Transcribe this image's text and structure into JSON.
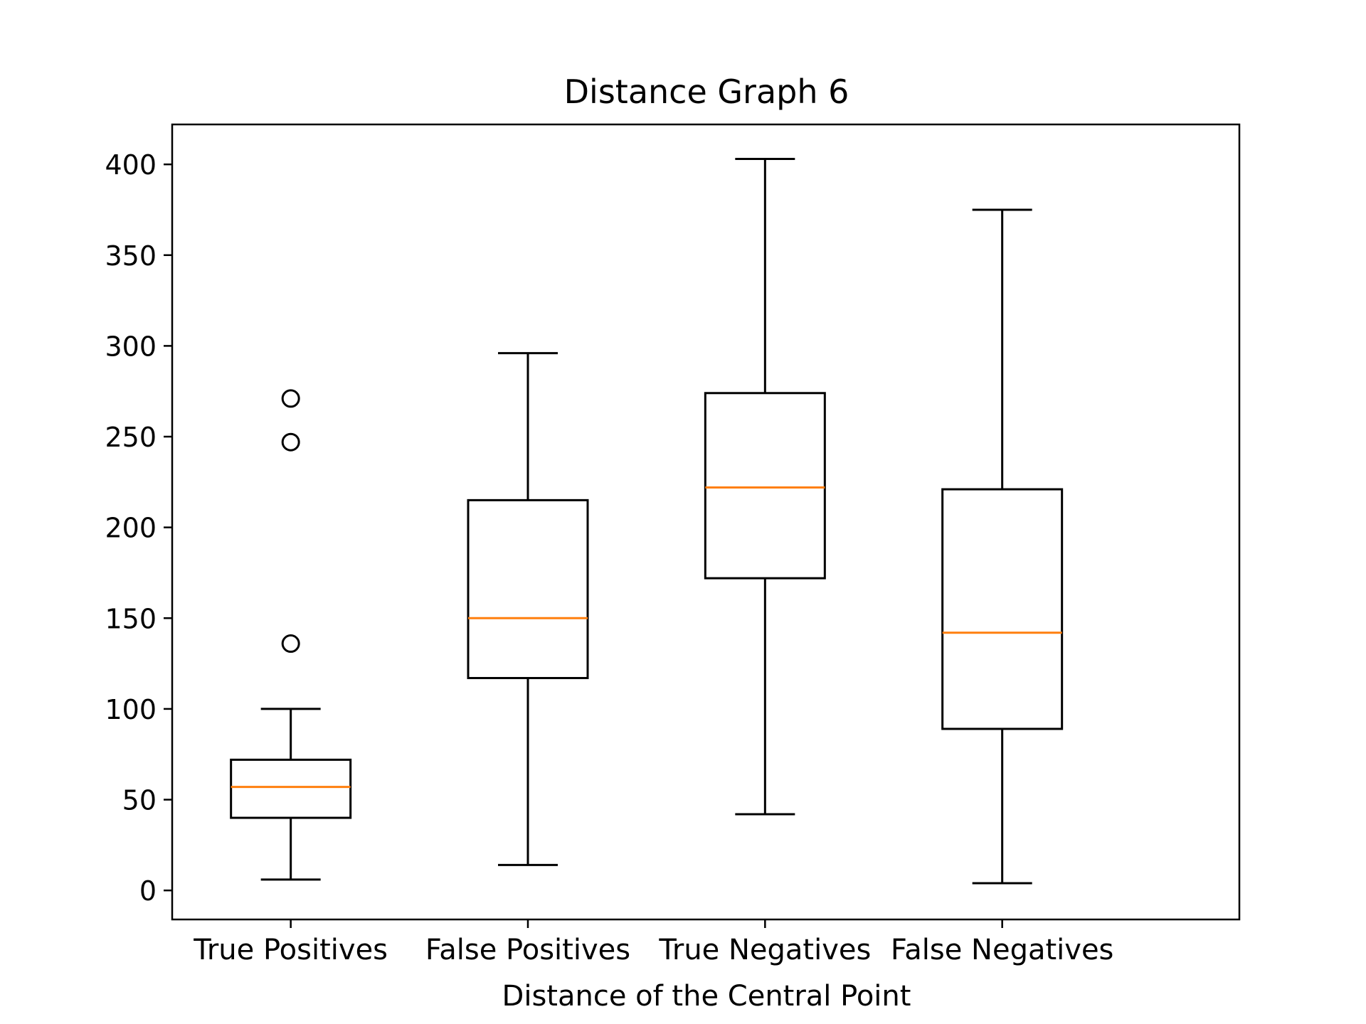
{
  "chart_data": {
    "type": "box",
    "title": "Distance Graph 6",
    "xlabel": "Distance of the Central Point",
    "ylabel": "",
    "ylim": [
      -16,
      422
    ],
    "yticks": [
      0,
      50,
      100,
      150,
      200,
      250,
      300,
      350,
      400
    ],
    "grid": false,
    "categories": [
      "True Positives",
      "False Positives",
      "True Negatives",
      "False Negatives"
    ],
    "boxes": [
      {
        "label": "True Positives",
        "whisker_low": 6,
        "q1": 40,
        "median": 57,
        "q3": 72,
        "whisker_high": 100,
        "outliers": [
          136,
          247,
          271
        ]
      },
      {
        "label": "False Positives",
        "whisker_low": 14,
        "q1": 117,
        "median": 150,
        "q3": 215,
        "whisker_high": 296,
        "outliers": []
      },
      {
        "label": "True Negatives",
        "whisker_low": 42,
        "q1": 172,
        "median": 222,
        "q3": 274,
        "whisker_high": 403,
        "outliers": []
      },
      {
        "label": "False Negatives",
        "whisker_low": 4,
        "q1": 89,
        "median": 142,
        "q3": 221,
        "whisker_high": 375,
        "outliers": []
      }
    ],
    "colors": {
      "box": "#000000",
      "median": "#ff7f0e",
      "background": "#ffffff"
    }
  }
}
